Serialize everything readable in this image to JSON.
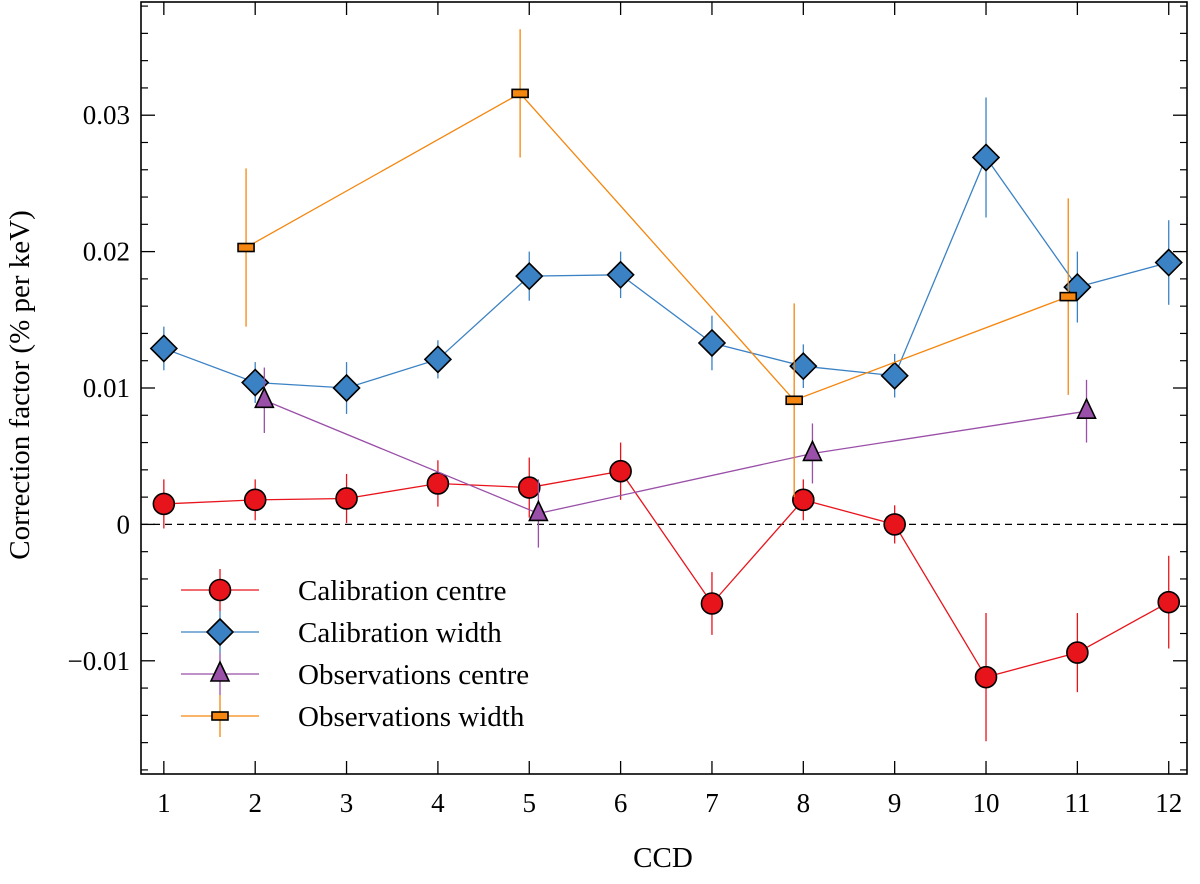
{
  "chart_data": {
    "type": "scatter",
    "xlabel": "CCD",
    "ylabel": "Correction factor (% per keV)",
    "xlim": [
      0.75,
      12.2
    ],
    "ylim": [
      -0.0183,
      0.0383
    ],
    "xticks": [
      1,
      2,
      3,
      4,
      5,
      6,
      7,
      8,
      9,
      10,
      11,
      12
    ],
    "xtick_labels": [
      "1",
      "2",
      "3",
      "4",
      "5",
      "6",
      "7",
      "8",
      "9",
      "10",
      "11",
      "12"
    ],
    "yticks": [
      -0.01,
      0,
      0.01,
      0.02,
      0.03
    ],
    "ytick_labels": [
      "−0.01",
      "0",
      "0.01",
      "0.02",
      "0.03"
    ],
    "zero_line": true,
    "grid": false,
    "legend_position": "lower-left",
    "series": [
      {
        "name": "Calibration centre",
        "color": "#e8141c",
        "marker": "circle",
        "x": [
          1,
          2,
          3,
          4,
          5,
          6,
          7,
          8,
          9,
          10,
          11,
          12
        ],
        "y": [
          0.0015,
          0.0018,
          0.0019,
          0.003,
          0.0027,
          0.0039,
          -0.0058,
          0.0018,
          0.0,
          -0.0112,
          -0.0094,
          -0.0057
        ],
        "err": [
          0.0018,
          0.0015,
          0.0018,
          0.0017,
          0.0022,
          0.0021,
          0.0023,
          0.0015,
          0.0014,
          0.0047,
          0.0029,
          0.0034
        ]
      },
      {
        "name": "Calibration width",
        "color": "#3b82c4",
        "marker": "diamond",
        "x": [
          1,
          2,
          3,
          4,
          5,
          6,
          7,
          8,
          9,
          10,
          11,
          12
        ],
        "y": [
          0.0129,
          0.0104,
          0.01,
          0.0121,
          0.0182,
          0.0183,
          0.0133,
          0.0116,
          0.0109,
          0.0269,
          0.0174,
          0.0192
        ],
        "err": [
          0.0016,
          0.0015,
          0.0019,
          0.0014,
          0.0018,
          0.0017,
          0.002,
          0.0016,
          0.0016,
          0.0044,
          0.0026,
          0.0031
        ]
      },
      {
        "name": "Observations centre",
        "color": "#9a4fa8",
        "marker": "triangle",
        "x": [
          2.1,
          5.1,
          8.1,
          11.1
        ],
        "y": [
          0.0091,
          0.0008,
          0.0052,
          0.0083
        ],
        "err": [
          0.0024,
          0.0025,
          0.0022,
          0.0023
        ]
      },
      {
        "name": "Observations width",
        "color": "#f5860f",
        "marker": "square",
        "x": [
          1.9,
          4.9,
          7.9,
          10.9
        ],
        "y": [
          0.0203,
          0.0316,
          0.0091,
          0.0167
        ],
        "err": [
          0.0058,
          0.0047,
          0.0071,
          0.0072
        ]
      }
    ]
  }
}
